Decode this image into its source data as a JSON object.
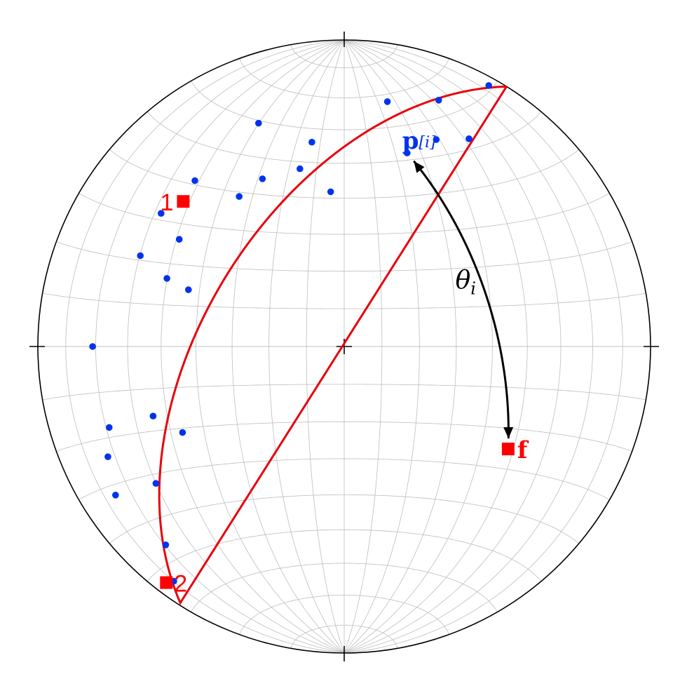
{
  "colors": {
    "primitive": "#ff0000",
    "great_circle": "#e8000b",
    "data_points": "#0033ee",
    "grid": "#bdbdbd",
    "outline": "#000000",
    "arrow": "#000000"
  },
  "net": {
    "type": "equal-area stereonet",
    "grid_spacing_deg": 10
  },
  "labels": {
    "point1": "1",
    "point2": "2",
    "pole_f": "f",
    "pi_main": "p",
    "pi_sub": "[i]",
    "theta_main": "θ",
    "theta_sub": "i"
  },
  "points": {
    "point1": {
      "trend": 312,
      "plunge": 30
    },
    "point2": {
      "trend": 217,
      "plunge": 4
    },
    "pole_f": {
      "trend": 122,
      "plunge": 37
    },
    "pi": {
      "trend": 18,
      "plunge": 34
    },
    "data_points": [
      {
        "trend": 29,
        "plunge": 3
      },
      {
        "trend": 21,
        "plunge": 15
      },
      {
        "trend": 31,
        "plunge": 22
      },
      {
        "trend": 10,
        "plunge": 20
      },
      {
        "trend": 24,
        "plunge": 27
      },
      {
        "trend": 351,
        "plunge": 33
      },
      {
        "trend": 339,
        "plunge": 23
      },
      {
        "trend": 346,
        "plunge": 40
      },
      {
        "trend": 334,
        "plunge": 39
      },
      {
        "trend": 355,
        "plunge": 48
      },
      {
        "trend": 318,
        "plunge": 28
      },
      {
        "trend": 306,
        "plunge": 27
      },
      {
        "trend": 325,
        "plunge": 40
      },
      {
        "trend": 294,
        "plunge": 28
      },
      {
        "trend": 303,
        "plunge": 36
      },
      {
        "trend": 291,
        "plunge": 38
      },
      {
        "trend": 290,
        "plunge": 45
      },
      {
        "trend": 270,
        "plunge": 19
      },
      {
        "trend": 251,
        "plunge": 20
      },
      {
        "trend": 237,
        "plunge": 12
      },
      {
        "trend": 222,
        "plunge": 14
      },
      {
        "trend": 234,
        "plunge": 25
      },
      {
        "trend": 250,
        "plunge": 34
      },
      {
        "trend": 242,
        "plunge": 40
      },
      {
        "trend": 245,
        "plunge": 16
      },
      {
        "trend": 216,
        "plunge": 6
      }
    ]
  }
}
